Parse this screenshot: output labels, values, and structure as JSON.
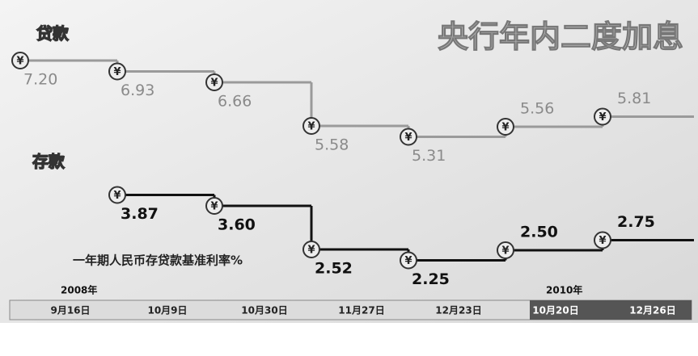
{
  "chart_data": {
    "type": "step",
    "title": "央行年内二度加息",
    "subtitle": "一年期人民币存贷款基准利率%",
    "symbol": "¥",
    "categories": [
      "9月16日",
      "10月9日",
      "10月30日",
      "11月27日",
      "12月23日",
      "10月20日",
      "12月26日"
    ],
    "years": [
      "2008年",
      null,
      null,
      null,
      null,
      "2010年",
      null
    ],
    "series": [
      {
        "name": "贷款",
        "color": "#9a9a9a",
        "label_color": "#8a8a8a",
        "values": [
          7.2,
          6.93,
          6.66,
          5.58,
          5.31,
          5.56,
          5.81
        ],
        "value_labels": [
          "7.20",
          "6.93",
          "6.66",
          "5.58",
          "5.31",
          "5.56",
          "5.81"
        ]
      },
      {
        "name": "存款",
        "color": "#111111",
        "label_color": "#111111",
        "values": [
          null,
          3.87,
          3.6,
          2.52,
          2.25,
          2.5,
          2.75
        ],
        "value_labels": [
          null,
          "3.87",
          "3.60",
          "2.52",
          "2.25",
          "2.50",
          "2.75"
        ]
      }
    ],
    "ylim": [
      1.7,
      8.1
    ]
  }
}
